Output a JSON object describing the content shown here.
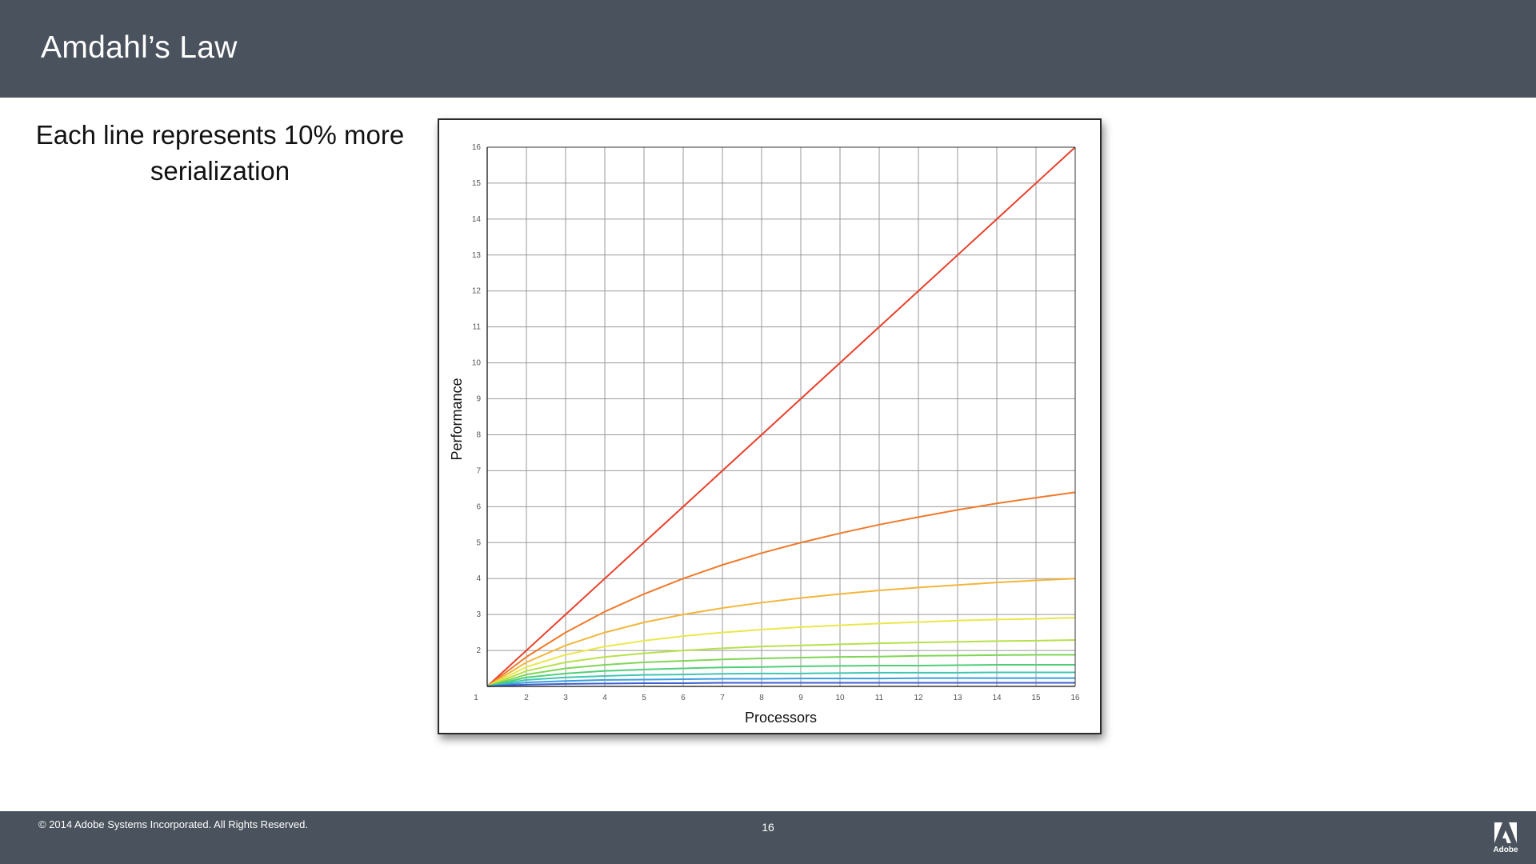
{
  "slide": {
    "title": "Amdahl’s Law",
    "caption": "Each line represents 10% more serialization"
  },
  "footer": {
    "copyright": "© 2014 Adobe Systems Incorporated.  All Rights Reserved.",
    "page_number": "16",
    "logo_text": "Adobe"
  },
  "chart_data": {
    "type": "line",
    "xlabel": "Processors",
    "ylabel": "Performance",
    "xlim": [
      1,
      16
    ],
    "ylim": [
      1,
      16
    ],
    "xticks": [
      1,
      2,
      3,
      4,
      5,
      6,
      7,
      8,
      9,
      10,
      11,
      12,
      13,
      14,
      15,
      16
    ],
    "yticks": [
      2,
      3,
      4,
      5,
      6,
      7,
      8,
      9,
      10,
      11,
      12,
      13,
      14,
      15,
      16
    ],
    "grid": true,
    "x": [
      1,
      2,
      3,
      4,
      5,
      6,
      7,
      8,
      9,
      10,
      11,
      12,
      13,
      14,
      15,
      16
    ],
    "series": [
      {
        "color": "#e8402a",
        "values": [
          1,
          2,
          3,
          4,
          5,
          6,
          7,
          8,
          9,
          10,
          11,
          12,
          13,
          14,
          15,
          16
        ]
      },
      {
        "color": "#ef7a2b",
        "values": [
          1,
          1.82,
          2.5,
          3.08,
          3.57,
          4.0,
          4.38,
          4.71,
          5.0,
          5.26,
          5.5,
          5.71,
          5.91,
          6.09,
          6.25,
          6.4
        ]
      },
      {
        "color": "#f2b63a",
        "values": [
          1,
          1.67,
          2.14,
          2.5,
          2.78,
          3.0,
          3.18,
          3.33,
          3.46,
          3.57,
          3.67,
          3.75,
          3.82,
          3.89,
          3.95,
          4.0
        ]
      },
      {
        "color": "#e9e84a",
        "values": [
          1,
          1.54,
          1.88,
          2.11,
          2.27,
          2.4,
          2.5,
          2.58,
          2.65,
          2.7,
          2.75,
          2.79,
          2.83,
          2.86,
          2.88,
          2.91
        ]
      },
      {
        "color": "#b8e04a",
        "values": [
          1,
          1.43,
          1.67,
          1.82,
          1.92,
          2.0,
          2.06,
          2.11,
          2.14,
          2.17,
          2.2,
          2.22,
          2.24,
          2.26,
          2.27,
          2.29
        ]
      },
      {
        "color": "#7fd655",
        "values": [
          1,
          1.33,
          1.5,
          1.6,
          1.67,
          1.71,
          1.75,
          1.78,
          1.8,
          1.82,
          1.83,
          1.85,
          1.86,
          1.87,
          1.88,
          1.88
        ]
      },
      {
        "color": "#4fcf78",
        "values": [
          1,
          1.25,
          1.36,
          1.43,
          1.47,
          1.5,
          1.53,
          1.54,
          1.56,
          1.57,
          1.58,
          1.58,
          1.59,
          1.6,
          1.6,
          1.6
        ]
      },
      {
        "color": "#3fc6b4",
        "values": [
          1,
          1.18,
          1.25,
          1.29,
          1.32,
          1.33,
          1.35,
          1.36,
          1.36,
          1.37,
          1.38,
          1.38,
          1.38,
          1.39,
          1.39,
          1.39
        ]
      },
      {
        "color": "#3a9fe0",
        "values": [
          1,
          1.11,
          1.15,
          1.18,
          1.19,
          1.2,
          1.21,
          1.21,
          1.22,
          1.22,
          1.22,
          1.23,
          1.23,
          1.23,
          1.23,
          1.23
        ]
      },
      {
        "color": "#3a5fd0",
        "values": [
          1,
          1.05,
          1.07,
          1.08,
          1.09,
          1.09,
          1.1,
          1.1,
          1.1,
          1.1,
          1.1,
          1.1,
          1.1,
          1.1,
          1.1,
          1.1
        ]
      }
    ]
  }
}
